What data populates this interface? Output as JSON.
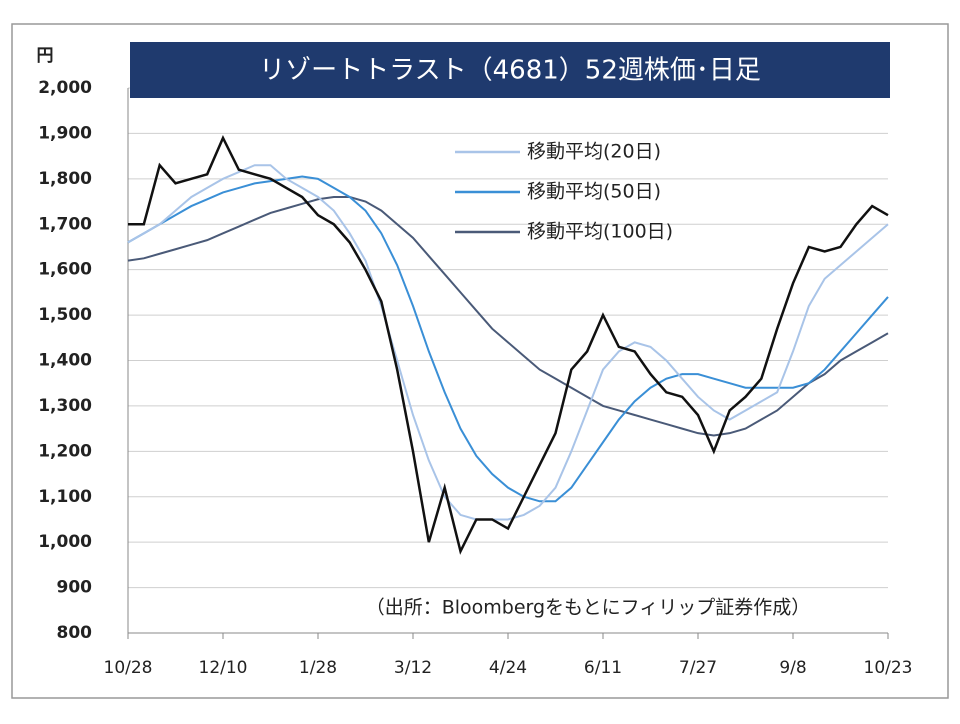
{
  "chart_data": {
    "type": "line",
    "title": "リゾートトラスト（4681）52週株価･日足",
    "y_unit": "円",
    "source": "（出所：Bloombergをもとにフィリップ証券作成）",
    "categories": [
      "10/28",
      null,
      null,
      null,
      null,
      null,
      "12/10",
      null,
      null,
      null,
      null,
      null,
      "1/28",
      null,
      null,
      null,
      null,
      null,
      "3/12",
      null,
      null,
      null,
      null,
      null,
      "4/24",
      null,
      null,
      null,
      null,
      null,
      "6/11",
      null,
      null,
      null,
      null,
      null,
      "7/27",
      null,
      null,
      null,
      null,
      null,
      "9/8",
      null,
      null,
      null,
      null,
      null,
      "10/23"
    ],
    "series": [
      {
        "name": "株価",
        "color": "#111111",
        "legend": false,
        "values": [
          1700,
          1700,
          1830,
          1790,
          1800,
          1810,
          1890,
          1820,
          1810,
          1800,
          1780,
          1760,
          1720,
          1700,
          1660,
          1600,
          1530,
          1380,
          1200,
          1000,
          1120,
          980,
          1050,
          1050,
          1030,
          1100,
          1170,
          1240,
          1380,
          1420,
          1500,
          1430,
          1420,
          1370,
          1330,
          1320,
          1280,
          1200,
          1290,
          1320,
          1360,
          1470,
          1570,
          1650,
          1640,
          1650,
          1700,
          1740,
          1720
        ]
      },
      {
        "name": "移動平均(20日)",
        "color": "#a9c4e8",
        "values": [
          1660,
          1680,
          1700,
          1730,
          1760,
          1780,
          1800,
          1815,
          1830,
          1830,
          1800,
          1780,
          1760,
          1730,
          1680,
          1620,
          1520,
          1400,
          1280,
          1180,
          1100,
          1060,
          1050,
          1050,
          1050,
          1060,
          1080,
          1120,
          1200,
          1290,
          1380,
          1420,
          1440,
          1430,
          1400,
          1360,
          1320,
          1290,
          1270,
          1290,
          1310,
          1330,
          1420,
          1520,
          1580,
          1610,
          1640,
          1670,
          1700
        ]
      },
      {
        "name": "移動平均(50日)",
        "color": "#3a8fd6",
        "values": [
          1660,
          1680,
          1700,
          1720,
          1740,
          1755,
          1770,
          1780,
          1790,
          1795,
          1800,
          1805,
          1800,
          1780,
          1760,
          1730,
          1680,
          1610,
          1520,
          1420,
          1330,
          1250,
          1190,
          1150,
          1120,
          1100,
          1090,
          1090,
          1120,
          1170,
          1220,
          1270,
          1310,
          1340,
          1360,
          1370,
          1370,
          1360,
          1350,
          1340,
          1340,
          1340,
          1340,
          1350,
          1380,
          1420,
          1460,
          1500,
          1540
        ]
      },
      {
        "name": "移動平均(100日)",
        "color": "#4a5a78",
        "values": [
          1620,
          1625,
          1635,
          1645,
          1655,
          1665,
          1680,
          1695,
          1710,
          1725,
          1735,
          1745,
          1755,
          1760,
          1760,
          1750,
          1730,
          1700,
          1670,
          1630,
          1590,
          1550,
          1510,
          1470,
          1440,
          1410,
          1380,
          1360,
          1340,
          1320,
          1300,
          1290,
          1280,
          1270,
          1260,
          1250,
          1240,
          1235,
          1240,
          1250,
          1270,
          1290,
          1320,
          1350,
          1370,
          1400,
          1420,
          1440,
          1460
        ]
      }
    ],
    "ylim": [
      800,
      2000
    ],
    "yticks": [
      800,
      900,
      {
        "value": 1000,
        "label": "1,000"
      },
      {
        "value": 1100,
        "label": "1,100"
      },
      {
        "value": 1200,
        "label": "1,200"
      },
      {
        "value": 1300,
        "label": "1,300"
      },
      {
        "value": 1400,
        "label": "1,400"
      },
      {
        "value": 1500,
        "label": "1,500"
      },
      {
        "value": 1600,
        "label": "1,600"
      },
      {
        "value": 1700,
        "label": "1,700"
      },
      {
        "value": 1800,
        "label": "1,800"
      },
      {
        "value": 1900,
        "label": "1,900"
      },
      {
        "value": 2000,
        "label": "2,000"
      }
    ],
    "grid": true
  }
}
